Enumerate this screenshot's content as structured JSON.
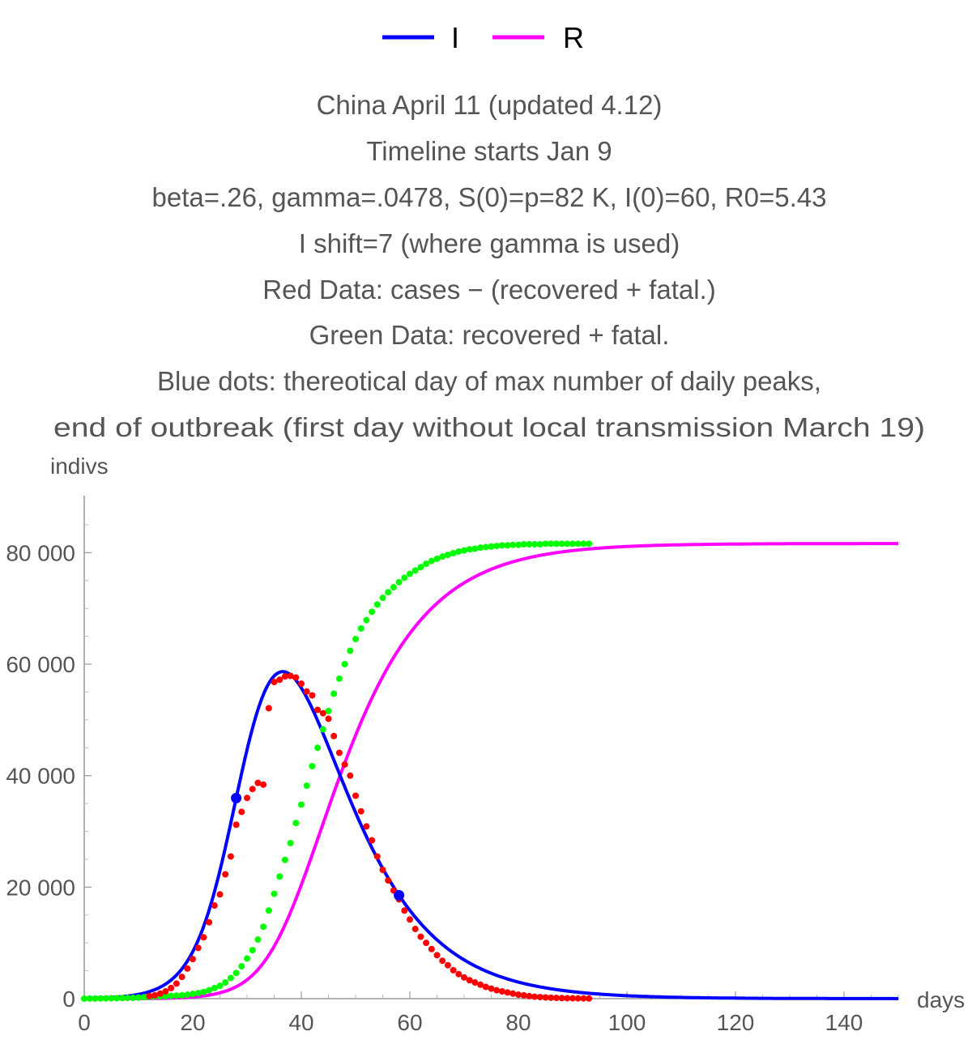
{
  "chart_data": {
    "type": "line",
    "legend": {
      "placement": "top-center",
      "entries": [
        {
          "label": "I",
          "color": "#0000ff"
        },
        {
          "label": "R",
          "color": "#ff00ff"
        }
      ]
    },
    "title_lines": [
      "China April 11 (updated 4.12)",
      "Timeline starts Jan 9",
      "beta=.26, gamma=.0478, S(0)=p=82 K, I(0)=60, R0=5.43",
      "I shift=7 (where gamma is used)",
      "Red Data: cases − (recovered + fatal.)",
      "Green Data: recovered + fatal.",
      "Blue dots: thereotical day of max number of daily peaks,",
      "end of outbreak (first day without local transmission March 19)"
    ],
    "xlabel": "days",
    "ylabel": "indivs",
    "xlim": [
      0,
      150
    ],
    "ylim": [
      0,
      90000
    ],
    "x_ticks": [
      0,
      20,
      40,
      60,
      80,
      100,
      120,
      140
    ],
    "x_tick_labels": [
      "0",
      "20",
      "40",
      "60",
      "80",
      "100",
      "120",
      "140"
    ],
    "y_ticks": [
      0,
      20000,
      40000,
      60000,
      80000
    ],
    "y_tick_labels": [
      "0",
      "20 000",
      "40 000",
      "60 000",
      "80 000"
    ],
    "grid": false,
    "model": {
      "beta": 0.26,
      "gamma": 0.0478,
      "S0": 82000,
      "I0": 60,
      "shift": 7,
      "t_end": 150
    },
    "series": [
      {
        "name": "I",
        "kind": "curve",
        "color": "#0000ff"
      },
      {
        "name": "R",
        "kind": "curve",
        "color": "#ff00ff"
      }
    ],
    "red_points": {
      "color": "#ff0000",
      "x": [
        12,
        13,
        14,
        15,
        16,
        17,
        18,
        19,
        20,
        21,
        22,
        23,
        24,
        25,
        26,
        27,
        28,
        29,
        30,
        31,
        32,
        33,
        34,
        35,
        36,
        37,
        38,
        39,
        40,
        41,
        42,
        43,
        44,
        45,
        46,
        47,
        48,
        49,
        50,
        51,
        52,
        53,
        54,
        55,
        56,
        57,
        58,
        59,
        60,
        61,
        62,
        63,
        64,
        65,
        66,
        67,
        68,
        69,
        70,
        71,
        72,
        73,
        74,
        75,
        76,
        77,
        78,
        79,
        80,
        81,
        82,
        83,
        84,
        85,
        86,
        87,
        88,
        89,
        90,
        91,
        92,
        93
      ],
      "y": [
        450,
        600,
        900,
        1300,
        1900,
        2700,
        3900,
        5400,
        7100,
        9100,
        11000,
        13700,
        16700,
        18700,
        22300,
        25500,
        31200,
        33500,
        36000,
        37600,
        38700,
        38400,
        52100,
        56800,
        57200,
        57800,
        57900,
        57600,
        56500,
        55100,
        54400,
        51800,
        51200,
        50200,
        47100,
        44100,
        42000,
        40000,
        36400,
        33600,
        30900,
        28400,
        25500,
        23100,
        21200,
        19400,
        17800,
        15800,
        14200,
        12500,
        11100,
        10000,
        8900,
        7800,
        6800,
        6000,
        5100,
        4400,
        3800,
        3300,
        2900,
        2500,
        2100,
        1800,
        1500,
        1300,
        1100,
        900,
        700,
        600,
        450,
        350,
        280,
        220,
        170,
        130,
        100,
        80,
        60,
        50,
        40,
        30
      ]
    },
    "green_points": {
      "color": "#00ff00",
      "x": [
        0,
        1,
        2,
        3,
        4,
        5,
        6,
        7,
        8,
        9,
        10,
        11,
        12,
        13,
        14,
        15,
        16,
        17,
        18,
        19,
        20,
        21,
        22,
        23,
        24,
        25,
        26,
        27,
        28,
        29,
        30,
        31,
        32,
        33,
        34,
        35,
        36,
        37,
        38,
        39,
        40,
        41,
        42,
        43,
        44,
        45,
        46,
        47,
        48,
        49,
        50,
        51,
        52,
        53,
        54,
        55,
        56,
        57,
        58,
        59,
        60,
        61,
        62,
        63,
        64,
        65,
        66,
        67,
        68,
        69,
        70,
        71,
        72,
        73,
        74,
        75,
        76,
        77,
        78,
        79,
        80,
        81,
        82,
        83,
        84,
        85,
        86,
        87,
        88,
        89,
        90,
        91,
        92,
        93
      ],
      "y": [
        0,
        10,
        20,
        30,
        40,
        60,
        80,
        100,
        130,
        160,
        200,
        250,
        300,
        350,
        400,
        450,
        500,
        550,
        600,
        700,
        850,
        1000,
        1200,
        1500,
        1900,
        2300,
        2900,
        3700,
        4600,
        5800,
        7200,
        8700,
        10600,
        12900,
        15800,
        18800,
        21900,
        24900,
        27900,
        31500,
        34800,
        38200,
        41700,
        45000,
        48300,
        51600,
        54700,
        57400,
        60000,
        62400,
        64500,
        66400,
        67900,
        69400,
        70700,
        71900,
        72900,
        73800,
        74700,
        75500,
        76200,
        76800,
        77400,
        78000,
        78500,
        78900,
        79300,
        79600,
        79900,
        80200,
        80400,
        80600,
        80700,
        80900,
        81000,
        81100,
        81200,
        81300,
        81300,
        81400,
        81400,
        81500,
        81500,
        81500,
        81500,
        81600,
        81600,
        81600,
        81600,
        81600,
        81600,
        81600,
        81600,
        81600
      ]
    },
    "blue_marker_days": [
      28,
      58
    ]
  }
}
